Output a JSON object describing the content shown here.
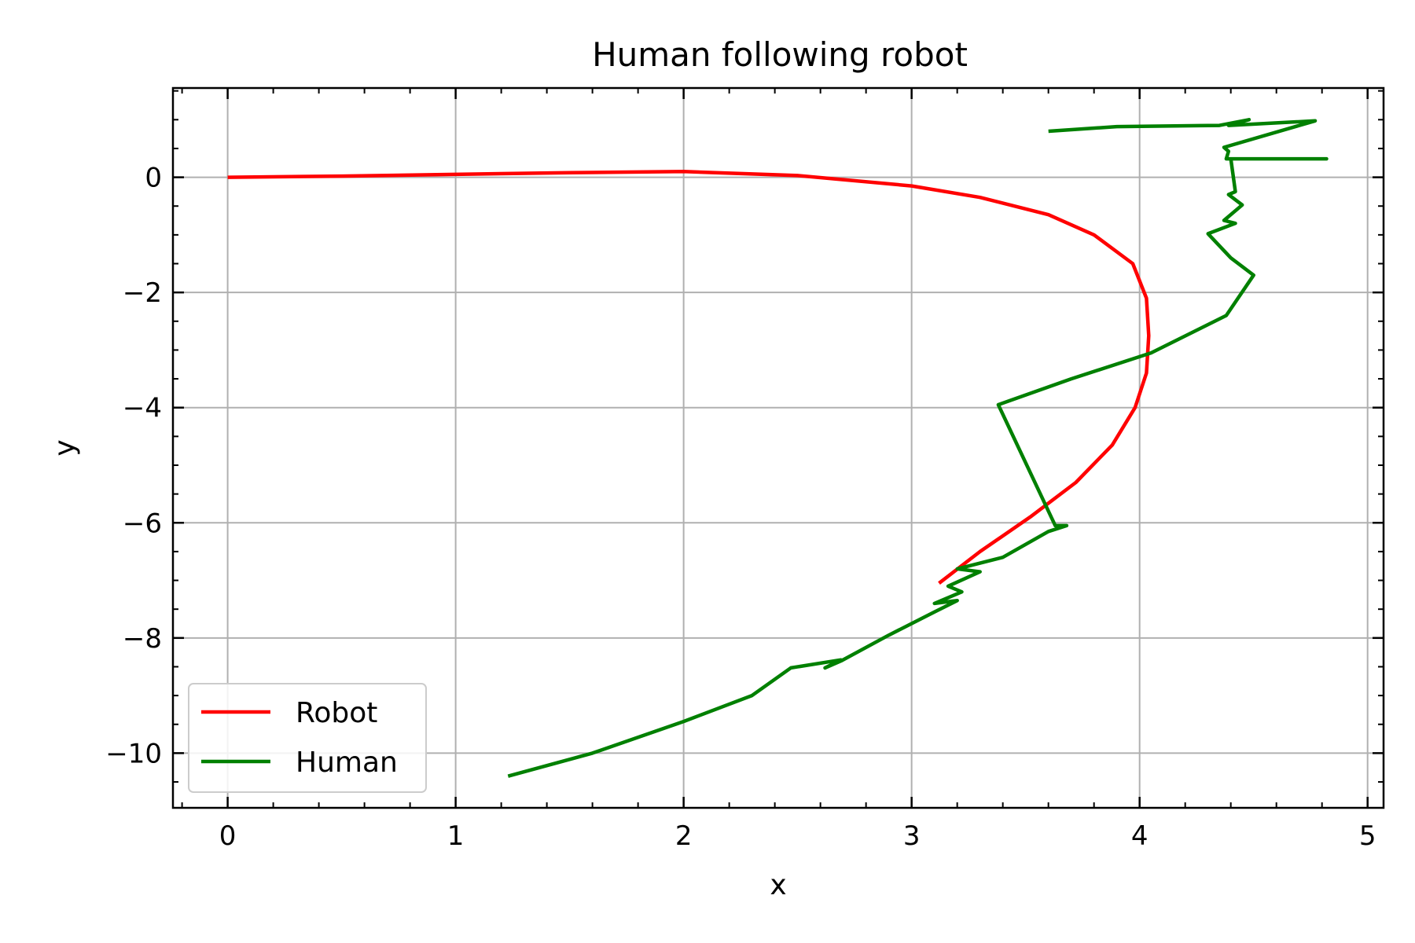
{
  "chart_data": {
    "type": "line",
    "title": "Human following robot",
    "xlabel": "x",
    "ylabel": "y",
    "xlim": [
      -0.24,
      5.07
    ],
    "ylim": [
      -10.95,
      1.55
    ],
    "grid": true,
    "legend_position": "bottom-left",
    "x_ticks": [
      0,
      1,
      2,
      3,
      4,
      5
    ],
    "y_ticks": [
      0,
      -2,
      -4,
      -6,
      -8,
      -10
    ],
    "x_tick_labels": [
      "0",
      "1",
      "2",
      "3",
      "4",
      "5"
    ],
    "y_tick_labels": [
      "0",
      "−2",
      "−4",
      "−6",
      "−8",
      "−10"
    ],
    "series": [
      {
        "name": "Robot",
        "color": "#ff0000",
        "x": [
          0.0,
          0.5,
          1.0,
          1.5,
          2.0,
          2.5,
          3.0,
          3.3,
          3.6,
          3.8,
          3.97,
          4.03,
          4.04,
          4.03,
          3.98,
          3.88,
          3.72,
          3.52,
          3.3,
          3.12
        ],
        "y": [
          0.0,
          0.02,
          0.05,
          0.08,
          0.1,
          0.03,
          -0.15,
          -0.35,
          -0.65,
          -1.0,
          -1.5,
          -2.1,
          -2.75,
          -3.4,
          -4.0,
          -4.65,
          -5.3,
          -5.9,
          -6.5,
          -7.05
        ]
      },
      {
        "name": "Human",
        "color": "#008000",
        "x": [
          1.23,
          1.6,
          2.0,
          2.3,
          2.47,
          2.69,
          2.62,
          2.69,
          2.9,
          3.1,
          3.2,
          3.1,
          3.22,
          3.16,
          3.3,
          3.2,
          3.38,
          3.4,
          3.6,
          3.68,
          3.63,
          3.38,
          3.7,
          4.05,
          4.38,
          4.5,
          4.4,
          4.3,
          4.42,
          4.37,
          4.45,
          4.39,
          4.42,
          4.4,
          4.82,
          4.38,
          4.39,
          4.37,
          4.77,
          4.39,
          4.48,
          4.35,
          3.9,
          3.6
        ],
        "y": [
          -10.4,
          -10.0,
          -9.45,
          -9.0,
          -8.52,
          -8.38,
          -8.52,
          -8.4,
          -7.95,
          -7.55,
          -7.35,
          -7.4,
          -7.2,
          -7.1,
          -6.85,
          -6.8,
          -6.62,
          -6.6,
          -6.15,
          -6.05,
          -6.05,
          -3.95,
          -3.5,
          -3.05,
          -2.4,
          -1.7,
          -1.4,
          -0.98,
          -0.8,
          -0.75,
          -0.48,
          -0.3,
          -0.25,
          0.32,
          0.32,
          0.32,
          0.45,
          0.52,
          0.98,
          0.9,
          1.0,
          0.9,
          0.88,
          0.8
        ]
      }
    ]
  }
}
